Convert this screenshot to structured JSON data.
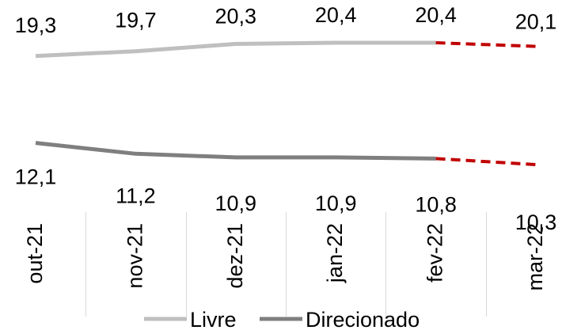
{
  "chart_data": {
    "type": "line",
    "categories": [
      "out-21",
      "nov-21",
      "dez-21",
      "jan-22",
      "fev-22",
      "mar-22"
    ],
    "series": [
      {
        "name": "Livre",
        "values": [
          19.3,
          19.7,
          20.3,
          20.4,
          20.4,
          20.1
        ],
        "labels": [
          "19,3",
          "19,7",
          "20,3",
          "20,4",
          "20,4",
          "20,1"
        ],
        "color": "#bfbfbf",
        "projected_from_index": 4
      },
      {
        "name": "Direcionado",
        "values": [
          12.1,
          11.2,
          10.9,
          10.9,
          10.8,
          10.3
        ],
        "labels": [
          "12,1",
          "11,2",
          "10,9",
          "10,9",
          "10,8",
          "10,3"
        ],
        "color": "#7f7f7f",
        "projected_from_index": 4
      }
    ],
    "projection_color": "#c00000",
    "projection_style": "dashed",
    "legend_position": "bottom",
    "grid": false,
    "title": "",
    "xlabel": "",
    "ylabel": ""
  }
}
